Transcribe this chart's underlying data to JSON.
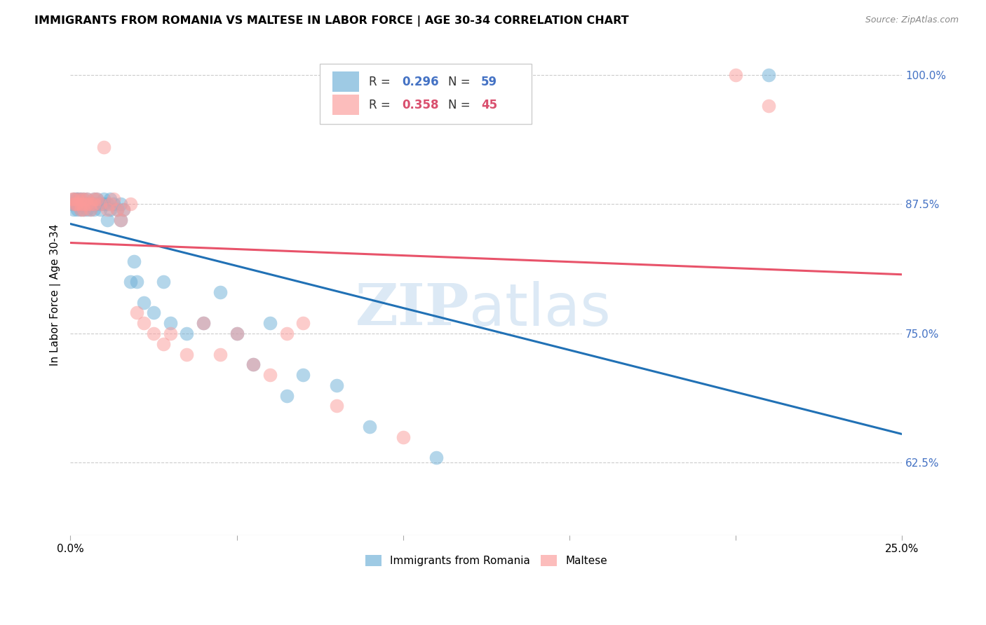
{
  "title": "IMMIGRANTS FROM ROMANIA VS MALTESE IN LABOR FORCE | AGE 30-34 CORRELATION CHART",
  "source": "Source: ZipAtlas.com",
  "ylabel": "In Labor Force | Age 30-34",
  "xlim": [
    0.0,
    0.25
  ],
  "ylim": [
    0.555,
    1.02
  ],
  "yticks": [
    0.625,
    0.75,
    0.875,
    1.0
  ],
  "ytick_labels": [
    "62.5%",
    "75.0%",
    "87.5%",
    "100.0%"
  ],
  "xticks": [
    0.0,
    0.05,
    0.1,
    0.15,
    0.2,
    0.25
  ],
  "xtick_labels": [
    "0.0%",
    "",
    "",
    "",
    "",
    "25.0%"
  ],
  "romania_color": "#6baed6",
  "maltese_color": "#fb9a99",
  "romania_R": 0.296,
  "romania_N": 59,
  "maltese_R": 0.358,
  "maltese_N": 45,
  "romania_line_color": "#2171b5",
  "maltese_line_color": "#e8536a",
  "romania_x": [
    0.0005,
    0.001,
    0.001,
    0.0015,
    0.0015,
    0.002,
    0.002,
    0.002,
    0.0025,
    0.0025,
    0.003,
    0.003,
    0.003,
    0.003,
    0.004,
    0.004,
    0.004,
    0.005,
    0.005,
    0.005,
    0.006,
    0.006,
    0.007,
    0.007,
    0.007,
    0.008,
    0.008,
    0.009,
    0.009,
    0.01,
    0.01,
    0.011,
    0.011,
    0.012,
    0.012,
    0.013,
    0.014,
    0.015,
    0.015,
    0.016,
    0.018,
    0.019,
    0.02,
    0.022,
    0.025,
    0.028,
    0.03,
    0.035,
    0.04,
    0.045,
    0.05,
    0.055,
    0.06,
    0.065,
    0.07,
    0.08,
    0.09,
    0.11,
    0.21
  ],
  "romania_y": [
    0.875,
    0.88,
    0.87,
    0.875,
    0.88,
    0.875,
    0.88,
    0.87,
    0.875,
    0.88,
    0.875,
    0.87,
    0.875,
    0.88,
    0.87,
    0.875,
    0.88,
    0.875,
    0.87,
    0.88,
    0.875,
    0.87,
    0.88,
    0.875,
    0.87,
    0.875,
    0.88,
    0.875,
    0.87,
    0.875,
    0.88,
    0.875,
    0.86,
    0.87,
    0.88,
    0.875,
    0.87,
    0.86,
    0.875,
    0.87,
    0.8,
    0.82,
    0.8,
    0.78,
    0.77,
    0.8,
    0.76,
    0.75,
    0.76,
    0.79,
    0.75,
    0.72,
    0.76,
    0.69,
    0.71,
    0.7,
    0.66,
    0.63,
    1.0
  ],
  "maltese_x": [
    0.0005,
    0.001,
    0.001,
    0.0015,
    0.002,
    0.002,
    0.003,
    0.003,
    0.003,
    0.004,
    0.004,
    0.004,
    0.005,
    0.005,
    0.006,
    0.006,
    0.007,
    0.007,
    0.008,
    0.009,
    0.01,
    0.011,
    0.012,
    0.013,
    0.014,
    0.015,
    0.016,
    0.018,
    0.02,
    0.022,
    0.025,
    0.028,
    0.03,
    0.035,
    0.04,
    0.045,
    0.05,
    0.055,
    0.06,
    0.065,
    0.07,
    0.08,
    0.1,
    0.2,
    0.21
  ],
  "maltese_y": [
    0.88,
    0.875,
    0.88,
    0.875,
    0.88,
    0.875,
    0.88,
    0.875,
    0.87,
    0.88,
    0.875,
    0.87,
    0.88,
    0.875,
    0.87,
    0.875,
    0.88,
    0.875,
    0.88,
    0.875,
    0.93,
    0.87,
    0.875,
    0.88,
    0.87,
    0.86,
    0.87,
    0.875,
    0.77,
    0.76,
    0.75,
    0.74,
    0.75,
    0.73,
    0.76,
    0.73,
    0.75,
    0.72,
    0.71,
    0.75,
    0.76,
    0.68,
    0.65,
    1.0,
    0.97
  ]
}
